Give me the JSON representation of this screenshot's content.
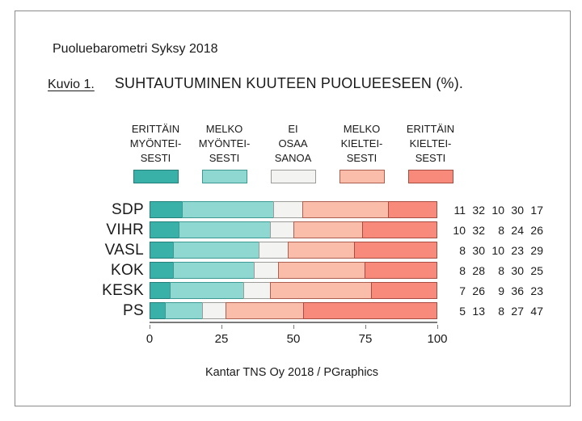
{
  "header": {
    "report_title": "Puoluebarometri Syksy 2018",
    "figure_label": "Kuvio 1.",
    "figure_title": "SUHTAUTUMINEN KUUTEEN PUOLUEESEEN (%)."
  },
  "legend": [
    {
      "lines": [
        "ERITTÄIN",
        "MYÖNTEI-",
        "SESTI"
      ],
      "fill": "#39b1a9",
      "edge": "#237f79"
    },
    {
      "lines": [
        "MELKO",
        "MYÖNTEI-",
        "SESTI"
      ],
      "fill": "#8ed8d1",
      "edge": "#3d9a93"
    },
    {
      "lines": [
        "EI",
        "OSAA",
        "SANOA"
      ],
      "fill": "#f3f3f1",
      "edge": "#9b9b98"
    },
    {
      "lines": [
        "MELKO",
        "KIELTEI-",
        "SESTI"
      ],
      "fill": "#f9bda9",
      "edge": "#aa5f50"
    },
    {
      "lines": [
        "ERITTÄIN",
        "KIELTEI-",
        "SESTI"
      ],
      "fill": "#f78a7b",
      "edge": "#a84b40"
    }
  ],
  "chart_data": {
    "type": "bar",
    "stacked": true,
    "orientation": "horizontal",
    "title": "SUHTAUTUMINEN KUUTEEN PUOLUEESEEN (%).",
    "categories": [
      "SDP",
      "VIHR",
      "VASL",
      "KOK",
      "KESK",
      "PS"
    ],
    "series": [
      {
        "name": "ERITTÄIN MYÖNTEISESTI",
        "color": "#39b1a9",
        "edge": "#237f79",
        "values": [
          11,
          10,
          8,
          8,
          7,
          5
        ]
      },
      {
        "name": "MELKO MYÖNTEISESTI",
        "color": "#8ed8d1",
        "edge": "#3d9a93",
        "values": [
          32,
          32,
          30,
          28,
          26,
          13
        ]
      },
      {
        "name": "EI OSAA SANOA",
        "color": "#f3f3f1",
        "edge": "#9b9b98",
        "values": [
          10,
          8,
          10,
          8,
          9,
          8
        ]
      },
      {
        "name": "MELKO KIELTEISESTI",
        "color": "#f9bda9",
        "edge": "#aa5f50",
        "values": [
          30,
          24,
          23,
          30,
          36,
          27
        ]
      },
      {
        "name": "ERITTÄIN KIELTEISESTI",
        "color": "#f78a7b",
        "edge": "#a84b40",
        "values": [
          17,
          26,
          29,
          25,
          23,
          47
        ]
      }
    ],
    "x_axis": {
      "range": [
        0,
        100
      ],
      "tick_labels": [
        "0",
        "25",
        "50",
        "75",
        "100"
      ],
      "tick_values": [
        0,
        25,
        50,
        75,
        100
      ]
    },
    "value_labels_position": "right-of-bar",
    "legend_position": "top"
  },
  "footer": {
    "credit": "Kantar TNS Oy 2018 / PGraphics"
  }
}
